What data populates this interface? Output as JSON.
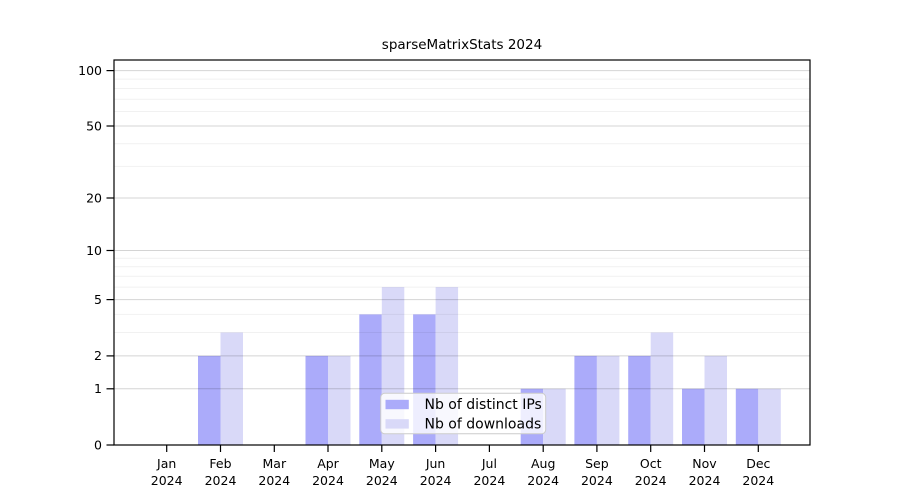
{
  "chart_data": {
    "type": "bar",
    "title": "sparseMatrixStats 2024",
    "categories": [
      "Jan",
      "Feb",
      "Mar",
      "Apr",
      "May",
      "Jun",
      "Jul",
      "Aug",
      "Sep",
      "Oct",
      "Nov",
      "Dec"
    ],
    "year_label": "2024",
    "series": [
      {
        "name": "Nb of distinct IPs",
        "color": "#ABABFA",
        "values": [
          0,
          2,
          0,
          2,
          4,
          4,
          0,
          1,
          2,
          2,
          1,
          1
        ]
      },
      {
        "name": "Nb of downloads",
        "color": "#D9D9F8",
        "values": [
          0,
          3,
          0,
          2,
          6,
          6,
          0,
          1,
          2,
          3,
          2,
          1
        ]
      }
    ],
    "xlabel": "",
    "ylabel": "",
    "y_scale": "log1p",
    "ylim": [
      0,
      100
    ],
    "y_ticks": [
      0,
      1,
      2,
      5,
      10,
      20,
      50,
      100
    ],
    "y_minor_gridlines": [
      3,
      4,
      6,
      7,
      8,
      9,
      30,
      40,
      60,
      70,
      80,
      90
    ],
    "grid": "horizontal",
    "legend_position": "bottom-center",
    "colors": {
      "axis": "#000000",
      "major_gridline": "#d4d4d4",
      "minor_gridline": "#f2f2f2",
      "legend_border": "#cccccc"
    }
  }
}
